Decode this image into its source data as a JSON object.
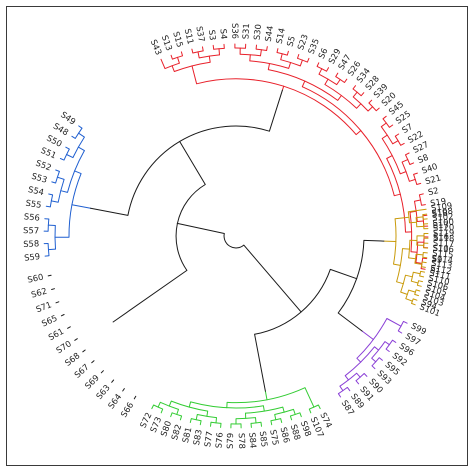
{
  "tree": {
    "clusters": [
      {
        "name": "red",
        "color": "#e8202a",
        "labels": [
          "S1",
          "S9",
          "S10",
          "S16",
          "S17",
          "S18",
          "S19",
          "S2",
          "S21",
          "S40",
          "S8",
          "S27",
          "S22",
          "S7",
          "S25",
          "S45",
          "S20",
          "S39",
          "S28",
          "S34",
          "S26",
          "S47",
          "S29",
          "S6",
          "S35",
          "S23",
          "S5",
          "S14",
          "S44",
          "S30",
          "S31",
          "S36",
          "S4",
          "S3",
          "S37",
          "S11",
          "S15",
          "S13",
          "S43"
        ]
      },
      {
        "name": "blue",
        "color": "#1f5fd0",
        "labels": [
          "S49",
          "S48",
          "S50",
          "S51",
          "S52",
          "S53",
          "S54",
          "S55",
          "S56",
          "S57",
          "S58",
          "S59"
        ]
      },
      {
        "name": "black",
        "color": "#1a1a1a",
        "labels": [
          "S60",
          "S62",
          "S71",
          "S65",
          "S61",
          "S70",
          "S68",
          "S67",
          "S69",
          "S63",
          "S64",
          "S66"
        ]
      },
      {
        "name": "green",
        "color": "#33cc33",
        "labels": [
          "S72",
          "S73",
          "S80",
          "S82",
          "S81",
          "S83",
          "S77",
          "S76",
          "S79",
          "S78",
          "S84",
          "S85",
          "S75",
          "S86",
          "S88",
          "S98",
          "S107",
          "S74"
        ]
      },
      {
        "name": "purple",
        "color": "#8a3fd6",
        "labels": [
          "S87",
          "S89",
          "S91",
          "S90",
          "S93",
          "S95",
          "S92",
          "S96",
          "S97",
          "S99"
        ]
      },
      {
        "name": "gold",
        "color": "#c99a0a",
        "labels": [
          "S101",
          "S94",
          "S103",
          "S104",
          "S105",
          "S106",
          "S110",
          "S111",
          "S112",
          "S113",
          "S114",
          "S115",
          "S116",
          "S117",
          "S118",
          "S119",
          "S120",
          "S100",
          "S102",
          "S108",
          "S109"
        ]
      }
    ]
  }
}
